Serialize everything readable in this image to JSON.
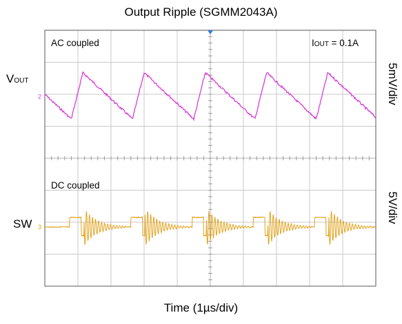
{
  "chart_data": {
    "type": "line",
    "title": "Output Ripple (SGMM2043A)",
    "xlabel": "Time (1µs/div)",
    "time_per_div": "1µs/div",
    "grid": true,
    "divisions": {
      "horizontal": 10,
      "vertical": 8
    },
    "annotations": {
      "ac_coupled": "AC coupled",
      "dc_coupled": "DC coupled",
      "iout_main": "I",
      "iout_sub": "OUT",
      "iout_value": " = 0.1A"
    },
    "series": [
      {
        "name_main": "V",
        "name_sub": "OUT",
        "scale": "5mV/div",
        "marker": "2",
        "color": "#d83cd8",
        "coupling": "AC coupled",
        "waveform": "sawtooth ripple",
        "period_us": 1.85,
        "peak_to_peak_div": 1.45,
        "peak_times_us": [
          1.15,
          3.0,
          4.85,
          6.7,
          8.55
        ]
      },
      {
        "name": "SW",
        "scale": "5V/div",
        "marker": "3",
        "color": "#e2a21b",
        "coupling": "DC coupled",
        "waveform": "switch node pulses with ringing",
        "period_us": 1.85,
        "pulse_high_start_us": [
          0.75,
          2.6,
          4.45,
          6.3,
          8.15
        ],
        "pulse_width_us": 0.35,
        "pulse_height_div": 0.3
      }
    ]
  }
}
